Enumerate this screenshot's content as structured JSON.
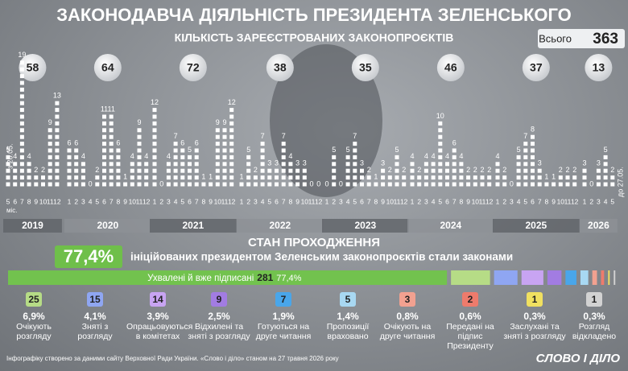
{
  "title": "ЗАКОНОДАВЧА ДІЯЛЬНІСТЬ ПРЕЗИДЕНТА ЗЕЛЕНСЬКОГО",
  "footer": "Інфографіку створено за даними сайту Верховної Ради України. «Слово і діло» станом на 27 травня 2026 року",
  "logo": "СЛОВО І ДІЛО",
  "chart_data": [
    {
      "type": "dot-column",
      "title": "КІЛЬКІСТЬ ЗАРЕЄСТРОВАНИХ ЗАКОНОПРОЄКТІВ",
      "total_label": "Всього",
      "total": 363,
      "start_note": "з 20.05.",
      "end_note": "до 27.05.",
      "month_unit": "міс.",
      "groups": [
        {
          "year": "2019",
          "total": 58,
          "categories": [
            "5",
            "6",
            "7",
            "8",
            "9",
            "10",
            "11",
            "12"
          ],
          "values": [
            5,
            4,
            19,
            4,
            2,
            2,
            9,
            13
          ]
        },
        {
          "year": "2020",
          "total": 64,
          "categories": [
            "1",
            "2",
            "3",
            "4",
            "5",
            "6",
            "7",
            "8",
            "9",
            "10",
            "11",
            "12"
          ],
          "values": [
            6,
            6,
            4,
            0,
            2,
            11,
            11,
            6,
            1,
            4,
            9,
            4
          ]
        },
        {
          "year": "2021",
          "total": 72,
          "categories": [
            "1",
            "2",
            "3",
            "4",
            "5",
            "6",
            "7",
            "8",
            "9",
            "10",
            "11",
            "12"
          ],
          "values": [
            12,
            0,
            4,
            7,
            6,
            5,
            6,
            1,
            1,
            9,
            9,
            12
          ]
        },
        {
          "year": "2022",
          "total": 38,
          "categories": [
            "1",
            "2",
            "3",
            "4",
            "5",
            "6",
            "7",
            "8",
            "9",
            "10",
            "11",
            "12"
          ],
          "values": [
            1,
            5,
            2,
            7,
            3,
            3,
            7,
            4,
            3,
            3,
            0,
            0
          ]
        },
        {
          "year": "2023",
          "total": 35,
          "categories": [
            "1",
            "2",
            "3",
            "4",
            "5",
            "6",
            "7",
            "8",
            "9",
            "10",
            "11",
            "12"
          ],
          "values": [
            0,
            5,
            0,
            5,
            7,
            3,
            2,
            1,
            3,
            2,
            5,
            2
          ]
        },
        {
          "year": "2024",
          "total": 46,
          "categories": [
            "1",
            "2",
            "3",
            "4",
            "5",
            "6",
            "7",
            "8",
            "9",
            "10",
            "11",
            "12"
          ],
          "values": [
            4,
            2,
            4,
            4,
            10,
            4,
            6,
            4,
            2,
            2,
            2,
            2
          ]
        },
        {
          "year": "2025",
          "total": 37,
          "categories": [
            "1",
            "2",
            "3",
            "4",
            "5",
            "6",
            "7",
            "8",
            "9",
            "10",
            "11",
            "12"
          ],
          "values": [
            4,
            2,
            0,
            5,
            7,
            8,
            3,
            1,
            1,
            2,
            2,
            2
          ]
        },
        {
          "year": "2026",
          "total": 13,
          "categories": [
            "1",
            "2",
            "3",
            "4",
            "5"
          ],
          "values": [
            3,
            0,
            3,
            5,
            2
          ]
        }
      ]
    },
    {
      "type": "stacked-bar",
      "title": "СТАН ПРОХОДЖЕННЯ",
      "headline_text": "ініційованих президентом Зеленським законопроєктів стали законами",
      "categories": [
        "Ухвалені й вже підписані",
        "Очікують розгляду",
        "Зняті з розгляду",
        "Опрацьовуються в комітетах",
        "Відхилені та зняті з розгляду",
        "Готуються на друге читання",
        "Пропозиції враховано",
        "Очікують на друге читання",
        "Передані на підпис Президенту",
        "Заслухані та зняті з розгляду",
        "Розгляд відкладено"
      ],
      "values": [
        281,
        25,
        15,
        14,
        9,
        7,
        5,
        3,
        2,
        1,
        1
      ],
      "percent": [
        77.4,
        6.9,
        4.1,
        3.9,
        2.5,
        1.9,
        1.4,
        0.8,
        0.6,
        0.3,
        0.3
      ],
      "percent_labels": [
        "77,4%",
        "6,9%",
        "4,1%",
        "3,9%",
        "2,5%",
        "1,9%",
        "1,4%",
        "0,8%",
        "0,6%",
        "0,3%",
        "0,3%"
      ],
      "colors": [
        "#72c24e",
        "#b6dc86",
        "#8fa6f2",
        "#c8a4f2",
        "#a27ce2",
        "#49a6ea",
        "#a8d8f2",
        "#f2a190",
        "#ee7b6c",
        "#f0e060",
        "#d2d2d2"
      ]
    }
  ]
}
